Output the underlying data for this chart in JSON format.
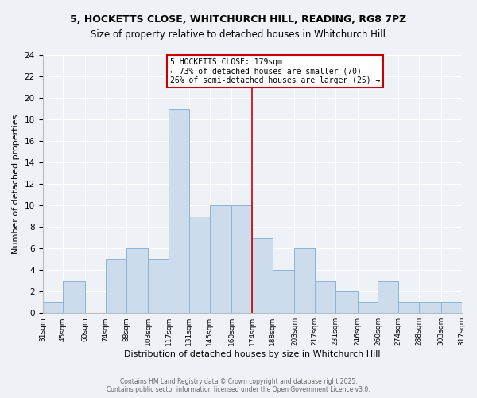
{
  "title1": "5, HOCKETTS CLOSE, WHITCHURCH HILL, READING, RG8 7PZ",
  "title2": "Size of property relative to detached houses in Whitchurch Hill",
  "xlabel": "Distribution of detached houses by size in Whitchurch Hill",
  "ylabel": "Number of detached properties",
  "bin_edges": [
    31,
    45,
    60,
    74,
    88,
    103,
    117,
    131,
    145,
    160,
    174,
    188,
    203,
    217,
    231,
    246,
    260,
    274,
    288,
    303,
    317
  ],
  "bin_labels": [
    "31sqm",
    "45sqm",
    "60sqm",
    "74sqm",
    "88sqm",
    "103sqm",
    "117sqm",
    "131sqm",
    "145sqm",
    "160sqm",
    "174sqm",
    "188sqm",
    "203sqm",
    "217sqm",
    "231sqm",
    "246sqm",
    "260sqm",
    "274sqm",
    "288sqm",
    "303sqm",
    "317sqm"
  ],
  "counts": [
    1,
    3,
    0,
    5,
    6,
    5,
    19,
    9,
    10,
    10,
    7,
    4,
    6,
    3,
    2,
    1,
    3,
    1,
    1,
    1
  ],
  "bar_color": "#ccdcec",
  "bar_edge_color": "#8ab4d4",
  "vline_x": 174,
  "vline_color": "#cc0000",
  "ylim": [
    0,
    24
  ],
  "yticks": [
    0,
    2,
    4,
    6,
    8,
    10,
    12,
    14,
    16,
    18,
    20,
    22,
    24
  ],
  "annotation_title": "5 HOCKETTS CLOSE: 179sqm",
  "annotation_line1": "← 73% of detached houses are smaller (70)",
  "annotation_line2": "26% of semi-detached houses are larger (25) →",
  "annotation_box_color": "#ffffff",
  "annotation_box_edge": "#cc0000",
  "footnote1": "Contains HM Land Registry data © Crown copyright and database right 2025.",
  "footnote2": "Contains public sector information licensed under the Open Government Licence v3.0.",
  "bg_color": "#eef2f7",
  "grid_color": "#ffffff",
  "title_fontsize": 9,
  "subtitle_fontsize": 8.5
}
